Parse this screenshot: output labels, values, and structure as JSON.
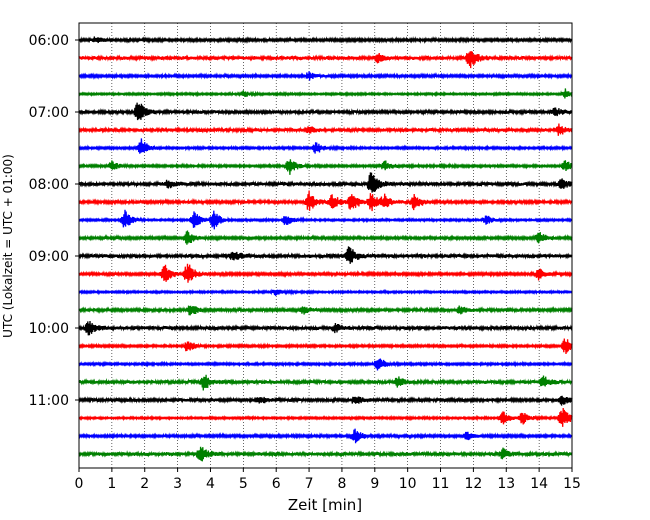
{
  "chart_data": {
    "type": "line",
    "xlabel": "Zeit  [min]",
    "ylabel": "UTC (Lokalzeit = UTC + 01:00)",
    "xlim": [
      0,
      15
    ],
    "x_ticks": [
      "0",
      "1",
      "2",
      "3",
      "4",
      "5",
      "6",
      "7",
      "8",
      "9",
      "10",
      "11",
      "12",
      "13",
      "14",
      "15"
    ],
    "y_ticks": [
      "06:00",
      "07:00",
      "08:00",
      "09:00",
      "10:00",
      "11:00"
    ],
    "grid": "vertical-dotted",
    "trace_colors": [
      "#000000",
      "#ff0000",
      "#0000ff",
      "#008000"
    ],
    "series": [
      {
        "start": "06:00",
        "color": "#000000",
        "events": [
          [
            0.5,
            0.4
          ]
        ]
      },
      {
        "start": "06:15",
        "color": "#ff0000",
        "events": [
          [
            9.1,
            0.5
          ],
          [
            11.9,
            1.3
          ]
        ]
      },
      {
        "start": "06:30",
        "color": "#0000ff",
        "events": [
          [
            7.0,
            0.5
          ]
        ]
      },
      {
        "start": "06:45",
        "color": "#008000",
        "events": [
          [
            5.0,
            0.4
          ],
          [
            14.8,
            0.6
          ]
        ]
      },
      {
        "start": "07:00",
        "color": "#000000",
        "events": [
          [
            1.8,
            1.4
          ],
          [
            14.5,
            0.5
          ]
        ]
      },
      {
        "start": "07:15",
        "color": "#ff0000",
        "events": [
          [
            7.0,
            0.4
          ],
          [
            14.6,
            0.6
          ]
        ]
      },
      {
        "start": "07:30",
        "color": "#0000ff",
        "events": [
          [
            1.9,
            1.2
          ],
          [
            7.2,
            0.8
          ]
        ]
      },
      {
        "start": "07:45",
        "color": "#008000",
        "events": [
          [
            1.0,
            0.6
          ],
          [
            6.4,
            1.1
          ],
          [
            9.3,
            0.7
          ],
          [
            14.8,
            0.7
          ]
        ]
      },
      {
        "start": "08:00",
        "color": "#000000",
        "events": [
          [
            2.7,
            0.5
          ],
          [
            8.9,
            1.6
          ],
          [
            14.7,
            0.7
          ]
        ]
      },
      {
        "start": "08:15",
        "color": "#ff0000",
        "events": [
          [
            7.0,
            1.3
          ],
          [
            7.7,
            1.0
          ],
          [
            8.3,
            1.3
          ],
          [
            8.9,
            1.2
          ],
          [
            9.3,
            0.8
          ],
          [
            10.2,
            1.0
          ]
        ]
      },
      {
        "start": "08:30",
        "color": "#0000ff",
        "events": [
          [
            1.4,
            1.3
          ],
          [
            3.5,
            1.1
          ],
          [
            4.1,
            1.2
          ],
          [
            6.3,
            0.8
          ],
          [
            12.4,
            0.6
          ]
        ]
      },
      {
        "start": "08:45",
        "color": "#008000",
        "events": [
          [
            3.3,
            0.9
          ],
          [
            14.0,
            0.8
          ]
        ]
      },
      {
        "start": "09:00",
        "color": "#000000",
        "events": [
          [
            4.7,
            0.6
          ],
          [
            8.2,
            1.3
          ]
        ]
      },
      {
        "start": "09:15",
        "color": "#ff0000",
        "events": [
          [
            2.6,
            1.2
          ],
          [
            3.3,
            1.5
          ],
          [
            14.0,
            0.8
          ]
        ]
      },
      {
        "start": "09:30",
        "color": "#0000ff",
        "events": [
          [
            6.0,
            0.4
          ]
        ]
      },
      {
        "start": "09:45",
        "color": "#008000",
        "events": [
          [
            3.4,
            0.8
          ],
          [
            6.8,
            0.5
          ],
          [
            11.6,
            0.5
          ]
        ]
      },
      {
        "start": "10:00",
        "color": "#000000",
        "events": [
          [
            0.3,
            0.9
          ],
          [
            7.8,
            0.5
          ]
        ]
      },
      {
        "start": "10:15",
        "color": "#ff0000",
        "events": [
          [
            3.3,
            0.8
          ],
          [
            14.8,
            1.1
          ]
        ]
      },
      {
        "start": "10:30",
        "color": "#0000ff",
        "events": [
          [
            9.1,
            1.0
          ]
        ]
      },
      {
        "start": "10:45",
        "color": "#008000",
        "events": [
          [
            3.8,
            1.0
          ],
          [
            9.7,
            0.6
          ],
          [
            14.1,
            0.8
          ]
        ]
      },
      {
        "start": "11:00",
        "color": "#000000",
        "events": [
          [
            5.5,
            0.5
          ],
          [
            8.4,
            0.6
          ],
          [
            14.7,
            0.6
          ]
        ]
      },
      {
        "start": "11:15",
        "color": "#ff0000",
        "events": [
          [
            12.9,
            0.8
          ],
          [
            13.5,
            0.8
          ],
          [
            14.7,
            1.4
          ]
        ]
      },
      {
        "start": "11:30",
        "color": "#0000ff",
        "events": [
          [
            8.4,
            0.9
          ],
          [
            11.8,
            0.5
          ]
        ]
      },
      {
        "start": "11:45",
        "color": "#008000",
        "events": [
          [
            3.7,
            1.0
          ],
          [
            12.9,
            0.6
          ]
        ]
      }
    ]
  }
}
